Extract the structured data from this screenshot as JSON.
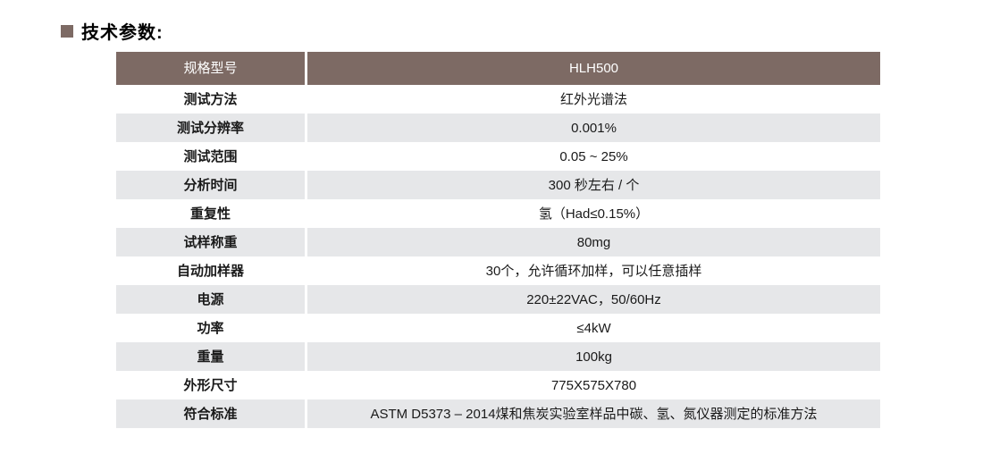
{
  "page": {
    "title": "技术参数:"
  },
  "colors": {
    "accent_brown": "#7d6a64",
    "header_text": "#ffffff",
    "row_alt_bg": "#e6e7e9",
    "row_plain_bg": "#ffffff",
    "body_text": "#1a1a1a"
  },
  "table": {
    "header": {
      "label": "规格型号",
      "value": "HLH500"
    },
    "rows": [
      {
        "label": "测试方法",
        "value": "红外光谱法"
      },
      {
        "label": "测试分辨率",
        "value": "0.001%"
      },
      {
        "label": "测试范围",
        "value": "0.05 ~ 25%"
      },
      {
        "label": "分析时间",
        "value": "300 秒左右 / 个"
      },
      {
        "label": "重复性",
        "value": "氢（Had≤0.15%）"
      },
      {
        "label": "试样称重",
        "value": "80mg"
      },
      {
        "label": "自动加样器",
        "value": "30个，允许循环加样，可以任意插样"
      },
      {
        "label": "电源",
        "value": "220±22VAC，50/60Hz"
      },
      {
        "label": "功率",
        "value": "≤4kW"
      },
      {
        "label": "重量",
        "value": "100kg"
      },
      {
        "label": "外形尺寸",
        "value": "775X575X780"
      },
      {
        "label": "符合标准",
        "value": "ASTM D5373 – 2014煤和焦炭实验室样品中碳、氢、氮仪器测定的标准方法"
      }
    ]
  }
}
